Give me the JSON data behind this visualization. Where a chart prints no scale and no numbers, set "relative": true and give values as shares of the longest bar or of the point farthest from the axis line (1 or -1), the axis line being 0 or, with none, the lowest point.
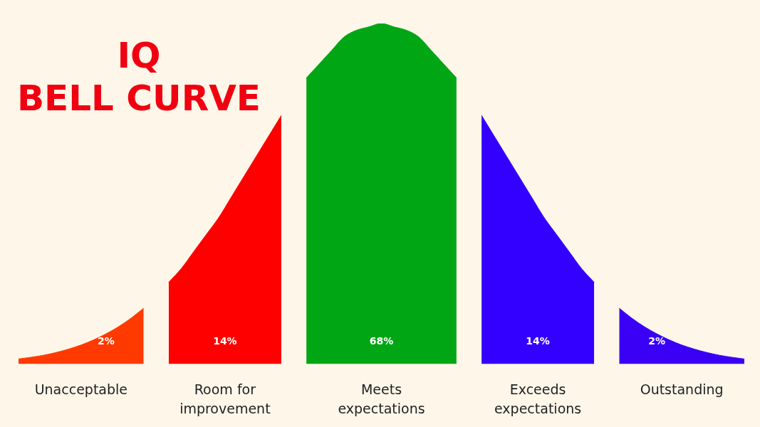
{
  "chart_data": {
    "type": "area",
    "title": "IQ BELL CURVE",
    "relative": true,
    "legend": false,
    "grid": false,
    "categories": [
      null,
      null,
      null,
      null,
      null,
      null,
      null,
      null,
      null,
      null,
      null,
      null,
      null,
      null,
      null,
      null,
      null,
      null,
      null,
      null,
      null,
      null,
      null,
      null,
      null,
      null,
      null,
      null,
      null,
      null,
      null,
      null,
      null,
      null,
      null,
      null,
      null,
      null,
      null,
      null,
      null,
      null,
      null,
      null,
      null,
      null,
      null,
      null,
      null,
      null,
      null,
      null,
      null,
      null,
      null,
      null,
      null,
      null,
      null
    ],
    "series": [
      {
        "name": "Unacceptable",
        "color": "#ff3a00",
        "values": [
          0.015,
          0.02,
          0.026,
          0.034,
          0.044,
          0.056,
          0.071,
          0.089,
          0.11,
          0.135,
          0.164,
          null,
          null,
          null,
          null,
          null,
          null,
          null,
          null,
          null,
          null,
          null,
          null,
          null,
          null,
          null,
          null,
          null,
          null,
          null,
          null,
          null,
          null,
          null,
          null,
          null,
          null,
          null,
          null,
          null,
          null,
          null,
          null,
          null,
          null,
          null,
          null,
          null,
          null,
          null,
          null,
          null,
          null,
          null,
          null,
          null,
          null,
          null,
          null
        ]
      },
      {
        "name": "Room for improvement",
        "color": "#ff0000",
        "values": [
          null,
          null,
          null,
          null,
          null,
          null,
          null,
          null,
          null,
          null,
          null,
          null,
          0.24,
          0.28,
          0.33,
          0.38,
          0.43,
          0.49,
          0.55,
          0.61,
          0.67,
          0.73,
          null,
          null,
          null,
          null,
          null,
          null,
          null,
          null,
          null,
          null,
          null,
          null,
          null,
          null,
          null,
          null,
          null,
          null,
          null,
          null,
          null,
          null,
          null,
          null,
          null,
          null,
          null,
          null,
          null,
          null,
          null,
          null,
          null,
          null,
          null,
          null,
          null
        ]
      },
      {
        "name": "Meets expectations",
        "color": "#00a614",
        "values": [
          null,
          null,
          null,
          null,
          null,
          null,
          null,
          null,
          null,
          null,
          null,
          null,
          null,
          null,
          null,
          null,
          null,
          null,
          null,
          null,
          null,
          null,
          null,
          0.84,
          0.88,
          0.92,
          0.96,
          0.98,
          0.99,
          1,
          0.99,
          0.98,
          0.96,
          0.92,
          0.88,
          0.84,
          null,
          null,
          null,
          null,
          null,
          null,
          null,
          null,
          null,
          null,
          null,
          null,
          null,
          null,
          null,
          null,
          null,
          null,
          null,
          null,
          null,
          null,
          null
        ]
      },
      {
        "name": "Exceeds expectations",
        "color": "#3300ff",
        "values": [
          null,
          null,
          null,
          null,
          null,
          null,
          null,
          null,
          null,
          null,
          null,
          null,
          null,
          null,
          null,
          null,
          null,
          null,
          null,
          null,
          null,
          null,
          null,
          null,
          null,
          null,
          null,
          null,
          null,
          null,
          null,
          null,
          null,
          null,
          null,
          null,
          null,
          0.73,
          0.67,
          0.61,
          0.55,
          0.49,
          0.43,
          0.38,
          0.33,
          0.28,
          0.24,
          null,
          null,
          null,
          null,
          null,
          null,
          null,
          null,
          null,
          null,
          null,
          null
        ]
      },
      {
        "name": "Outstanding",
        "color": "#3a00f5",
        "values": [
          null,
          null,
          null,
          null,
          null,
          null,
          null,
          null,
          null,
          null,
          null,
          null,
          null,
          null,
          null,
          null,
          null,
          null,
          null,
          null,
          null,
          null,
          null,
          null,
          null,
          null,
          null,
          null,
          null,
          null,
          null,
          null,
          null,
          null,
          null,
          null,
          null,
          null,
          null,
          null,
          null,
          null,
          null,
          null,
          null,
          null,
          null,
          null,
          0.164,
          0.135,
          0.11,
          0.089,
          0.071,
          0.056,
          0.044,
          0.034,
          0.026,
          0.02,
          0.015
        ]
      }
    ],
    "annotations": [
      "2%",
      "14%",
      "68%",
      "14%",
      "2%"
    ]
  }
}
